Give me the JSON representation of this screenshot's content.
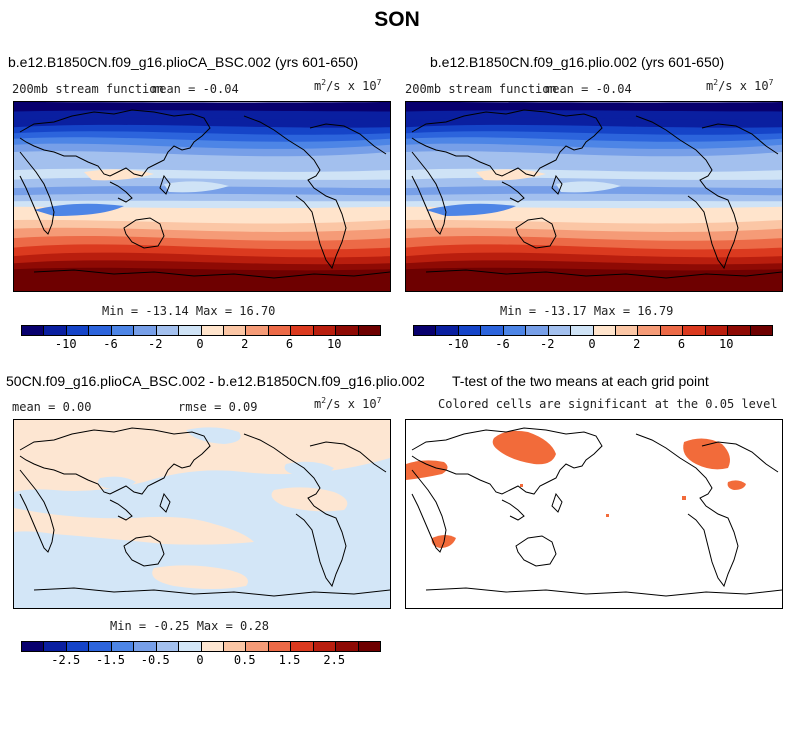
{
  "figure": {
    "title": "SON"
  },
  "chart_data": [
    {
      "type": "heatmap",
      "title": "b.e12.B1850CN.f09_g16.plioCA_BSC.002 (yrs 601-650)",
      "left_label": "200mb stream function",
      "mean_label": "mean =  -0.04",
      "units_text": "m",
      "units_rest": "/s x 10",
      "units_sup1": "2",
      "units_sup2": "7",
      "minmax": "Min = -13.14 Max =  16.70",
      "colorbar_ticks": [
        "-10",
        "-6",
        "-2",
        "0",
        "2",
        "6",
        "10"
      ],
      "colorbar_levels": [
        -12,
        -10,
        -8,
        -6,
        -4,
        -2,
        -1,
        0,
        1,
        2,
        4,
        6,
        8,
        10,
        12,
        14
      ]
    },
    {
      "type": "heatmap",
      "title": "b.e12.B1850CN.f09_g16.plio.002 (yrs 601-650)",
      "left_label": "200mb stream function",
      "mean_label": "mean =  -0.04",
      "units_text": "m",
      "units_rest": "/s x 10",
      "units_sup1": "2",
      "units_sup2": "7",
      "minmax": "Min = -13.17 Max =  16.79",
      "colorbar_ticks": [
        "-10",
        "-6",
        "-2",
        "0",
        "2",
        "6",
        "10"
      ],
      "colorbar_levels": [
        -12,
        -10,
        -8,
        -6,
        -4,
        -2,
        -1,
        0,
        1,
        2,
        4,
        6,
        8,
        10,
        12,
        14
      ]
    },
    {
      "type": "heatmap",
      "title": "50CN.f09_g16.plioCA_BSC.002 - b.e12.B1850CN.f09_g16.plio.002",
      "mean_label": "mean =   0.00",
      "rmse_label": "rmse =   0.09",
      "units_text": "m",
      "units_rest": "/s x 10",
      "units_sup1": "2",
      "units_sup2": "7",
      "minmax": "Min = -0.25 Max =  0.28",
      "colorbar_ticks": [
        "-2.5",
        "-1.5",
        "-0.5",
        "0",
        "0.5",
        "1.5",
        "2.5"
      ]
    },
    {
      "type": "heatmap",
      "title": "T-test of the two means at each grid point",
      "subtitle": "Colored cells are significant at the 0.05 level"
    }
  ],
  "palette": [
    "#08006e",
    "#0a1fa0",
    "#1544c8",
    "#2c64dc",
    "#4d85e6",
    "#779fe8",
    "#a3c0ee",
    "#cfe3f6",
    "#ffe4cc",
    "#fbc6a5",
    "#f59b77",
    "#ec6a47",
    "#db3a1f",
    "#b91e0e",
    "#8e0a04",
    "#6e0000"
  ]
}
